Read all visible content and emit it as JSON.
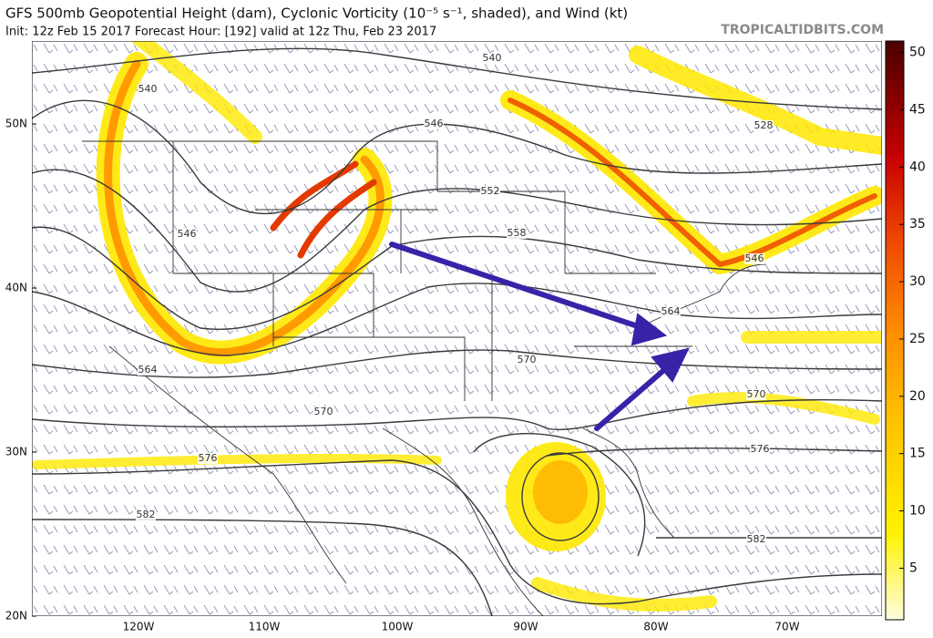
{
  "header": {
    "title": "GFS 500mb Geopotential Height (dam), Cyclonic Vorticity (10⁻⁵ s⁻¹, shaded), and Wind (kt)",
    "subtitle": "Init: 12z Feb 15 2017   Forecast Hour: [192]   valid at 12z Thu, Feb 23 2017",
    "brand": "TROPICALTIDBITS.COM"
  },
  "map": {
    "lat_labels": [
      "50N",
      "40N",
      "30N",
      "20N"
    ],
    "lon_labels": [
      "120W",
      "110W",
      "100W",
      "90W",
      "80W",
      "70W"
    ],
    "contour_labels": [
      "540",
      "540",
      "546",
      "546",
      "552",
      "558",
      "564",
      "570",
      "570",
      "576",
      "582",
      "528",
      "546",
      "564",
      "570",
      "576",
      "582"
    ]
  },
  "colorbar": {
    "lim": [
      0.5,
      51
    ],
    "ticks": [
      5,
      10,
      15,
      20,
      25,
      30,
      35,
      40,
      45,
      50
    ]
  }
}
